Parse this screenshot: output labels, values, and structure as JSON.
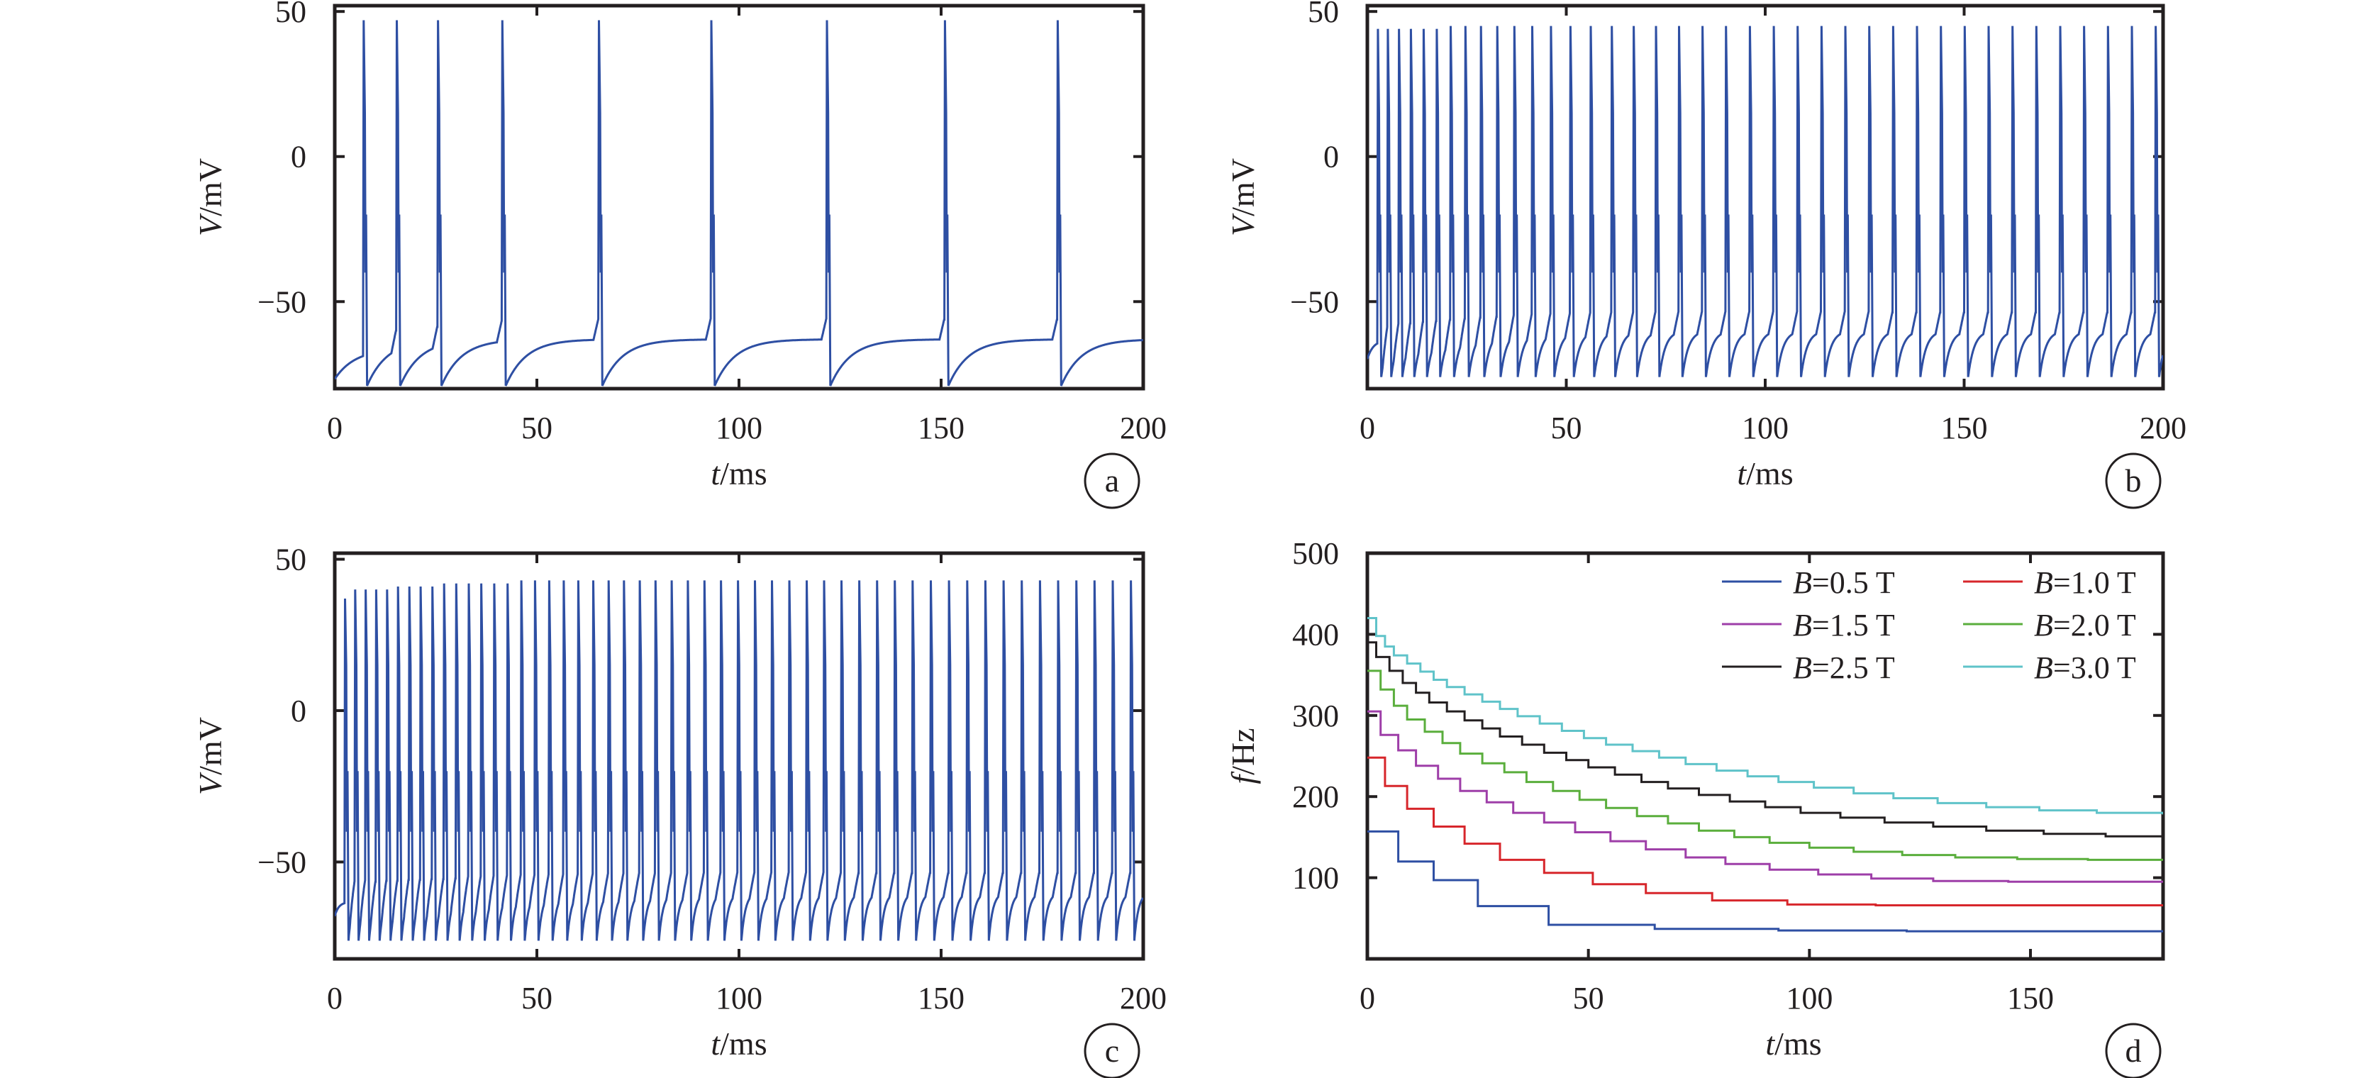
{
  "chart_data": [
    {
      "panel": "a",
      "type": "line",
      "xlabel_italic": "t",
      "xlabel_unit": "/ms",
      "ylabel_italic": "V",
      "ylabel_unit": "/mV",
      "xlim": [
        0,
        200
      ],
      "ylim": [
        -80,
        52
      ],
      "xticks": [
        "0",
        "50",
        "100",
        "150",
        "200"
      ],
      "yticks": [
        "−50",
        "0",
        "50"
      ],
      "ytick_values": [
        -50,
        0,
        50
      ],
      "line_color": "#2e4fa3",
      "spike_times": [
        7.0,
        15.2,
        25.4,
        41.3,
        65.2,
        93.0,
        121.6,
        150.8,
        178.7
      ],
      "spike_peaks": [
        47,
        47,
        47,
        47,
        47,
        47,
        47,
        47,
        47
      ],
      "trough": -79,
      "recovery_tau": 5,
      "rest_plateau": -63,
      "series": [
        {
          "values_description_note": ""
        }
      ]
    },
    {
      "panel": "b",
      "type": "line",
      "xlabel_italic": "t",
      "xlabel_unit": "/ms",
      "ylabel_italic": "V",
      "ylabel_unit": "/mV",
      "xlim": [
        0,
        200
      ],
      "ylim": [
        -80,
        52
      ],
      "xticks": [
        "0",
        "50",
        "100",
        "150",
        "200"
      ],
      "yticks": [
        "−50",
        "0",
        "50"
      ],
      "ytick_values": [
        -50,
        0,
        50
      ],
      "line_color": "#2e4fa3",
      "spike_times": [
        2.5,
        5.0,
        7.8,
        10.8,
        14.0,
        17.3,
        20.8,
        24.5,
        28.4,
        32.5,
        36.8,
        41.3,
        46.0,
        50.9,
        56.0,
        61.3,
        66.8,
        72.4,
        78.2,
        84.1,
        90.0,
        96.0,
        102.0,
        108.0,
        114.0,
        120.0,
        126.0,
        132.0,
        138.0,
        144.0,
        150.0,
        156.0,
        162.0,
        168.0,
        174.0,
        180.0,
        186.0,
        192.0,
        198.0
      ],
      "spike_peaks": [
        44,
        44,
        44,
        44,
        44,
        44,
        45,
        45,
        45,
        45,
        45,
        45,
        45,
        45,
        45,
        45,
        45,
        45,
        45,
        45,
        45,
        45,
        45,
        45,
        45,
        45,
        45,
        45,
        45,
        45,
        45,
        45,
        45,
        45,
        45,
        45,
        45,
        45,
        45
      ],
      "trough": -76,
      "recovery_tau": 1.5,
      "rest_plateau": -60
    },
    {
      "panel": "c",
      "type": "line",
      "xlabel_italic": "t",
      "xlabel_unit": "/ms",
      "ylabel_italic": "V",
      "ylabel_unit": "/mV",
      "xlim": [
        0,
        200
      ],
      "ylim": [
        -82,
        52
      ],
      "xticks": [
        "0",
        "50",
        "100",
        "150",
        "200"
      ],
      "yticks": [
        "−50",
        "0",
        "50"
      ],
      "ytick_values": [
        -50,
        0,
        50
      ],
      "line_color": "#2e4fa3",
      "spike_times": [
        2.4,
        4.9,
        7.5,
        10.1,
        12.8,
        15.5,
        18.3,
        21.1,
        24.0,
        26.9,
        29.9,
        33.0,
        36.1,
        39.3,
        42.6,
        46.0,
        49.4,
        52.9,
        56.5,
        60.1,
        63.8,
        67.6,
        71.4,
        75.3,
        79.2,
        83.2,
        87.2,
        91.3,
        95.4,
        99.6,
        103.8,
        108.0,
        112.3,
        116.6,
        120.9,
        125.2,
        129.6,
        134.0,
        138.4,
        142.8,
        147.3,
        151.8,
        156.3,
        160.8,
        165.3,
        169.8,
        174.3,
        178.8,
        183.3,
        187.8,
        192.3,
        196.8
      ],
      "spike_peaks": [
        37,
        40,
        40,
        40,
        40,
        41,
        41,
        41,
        41,
        42,
        42,
        42,
        42,
        42,
        42,
        43,
        43,
        43,
        43,
        43,
        43,
        43,
        43,
        43,
        43,
        43,
        43,
        43,
        43,
        43,
        43,
        43,
        43,
        43,
        43,
        43,
        43,
        43,
        43,
        43,
        43,
        43,
        43,
        43,
        43,
        43,
        43,
        43,
        43,
        43,
        43,
        43
      ],
      "trough": -76,
      "recovery_tau": 1.0,
      "rest_plateau": -60
    },
    {
      "panel": "d",
      "type": "line",
      "xlabel_italic": "t",
      "xlabel_unit": "/ms",
      "ylabel_italic": "f",
      "ylabel_unit": "/Hz",
      "xlim": [
        0,
        180
      ],
      "ylim": [
        0,
        500
      ],
      "xticks": [
        "0",
        "50",
        "100",
        "150"
      ],
      "xtick_values": [
        0,
        50,
        100,
        150
      ],
      "yticks": [
        "100",
        "200",
        "300",
        "400",
        "500"
      ],
      "ytick_values": [
        100,
        200,
        300,
        400,
        500
      ],
      "legend_position": "top-right",
      "series": [
        {
          "name_italic": "B",
          "name_rest": "=0.5 T",
          "color": "#2e4fa3",
          "x": [
            0,
            7,
            15,
            25,
            41,
            65,
            93,
            122,
            151,
            180
          ],
          "y": [
            157,
            120,
            97,
            65,
            42,
            37,
            35,
            34,
            34,
            34
          ]
        },
        {
          "name_italic": "B",
          "name_rest": "=1.0 T",
          "color": "#d7262b",
          "x": [
            0,
            4,
            9,
            15,
            22,
            30,
            40,
            51,
            63,
            78,
            95,
            115,
            140,
            170,
            180
          ],
          "y": [
            248,
            213,
            185,
            163,
            142,
            122,
            106,
            92,
            81,
            72,
            67,
            66,
            66,
            66,
            66
          ]
        },
        {
          "name_italic": "B",
          "name_rest": "=1.5 T",
          "color": "#9e3ea8",
          "x": [
            0,
            3,
            7,
            11,
            16,
            21,
            27,
            33,
            40,
            47,
            55,
            63,
            72,
            81,
            91,
            102,
            114,
            128,
            145,
            165,
            180
          ],
          "y": [
            305,
            276,
            257,
            238,
            222,
            207,
            193,
            180,
            168,
            156,
            145,
            135,
            125,
            117,
            110,
            104,
            99,
            96,
            95,
            95,
            95
          ]
        },
        {
          "name_italic": "B",
          "name_rest": "=2.0 T",
          "color": "#5aae3c",
          "x": [
            0,
            3,
            6,
            9,
            13,
            17,
            21,
            26,
            31,
            36,
            42,
            48,
            54,
            61,
            68,
            75,
            83,
            91,
            100,
            110,
            121,
            133,
            147,
            163,
            180
          ],
          "y": [
            355,
            332,
            312,
            295,
            280,
            266,
            253,
            241,
            230,
            218,
            207,
            196,
            186,
            176,
            167,
            158,
            150,
            143,
            137,
            132,
            128,
            125,
            123,
            122,
            122
          ]
        },
        {
          "name_italic": "B",
          "name_rest": "=2.5 T",
          "color": "#231f20",
          "x": [
            0,
            2,
            5,
            8,
            11,
            14,
            18,
            22,
            26,
            30,
            35,
            40,
            45,
            50,
            56,
            62,
            68,
            75,
            82,
            90,
            98,
            107,
            117,
            128,
            140,
            153,
            167,
            180
          ],
          "y": [
            390,
            372,
            355,
            340,
            328,
            316,
            305,
            294,
            284,
            274,
            264,
            254,
            245,
            236,
            227,
            218,
            210,
            202,
            194,
            187,
            180,
            174,
            168,
            163,
            158,
            154,
            151,
            150
          ]
        },
        {
          "name_italic": "B",
          "name_rest": "=3.0 T",
          "color": "#5fc3c9",
          "x": [
            0,
            2,
            4,
            6,
            9,
            12,
            15,
            18,
            22,
            26,
            30,
            34,
            39,
            44,
            49,
            54,
            60,
            66,
            72,
            79,
            86,
            93,
            101,
            110,
            119,
            129,
            140,
            152,
            165,
            180
          ],
          "y": [
            420,
            398,
            385,
            374,
            364,
            354,
            344,
            335,
            326,
            317,
            308,
            299,
            290,
            281,
            272,
            264,
            256,
            248,
            240,
            232,
            225,
            218,
            211,
            204,
            198,
            192,
            187,
            183,
            180,
            178
          ]
        }
      ]
    }
  ]
}
